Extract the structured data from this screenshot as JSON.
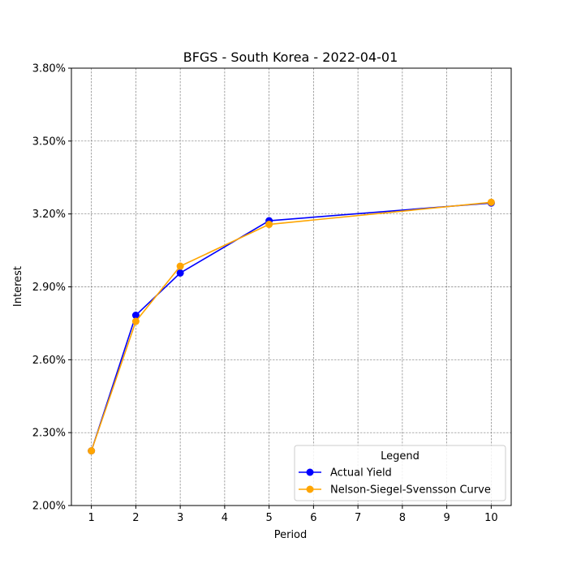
{
  "chart_data": {
    "type": "line",
    "title": "BFGS - South Korea - 2022-04-01",
    "xlabel": "Period",
    "ylabel": "Interest",
    "x": [
      1,
      2,
      3,
      5,
      10
    ],
    "xticks": [
      "1",
      "2",
      "3",
      "4",
      "5",
      "6",
      "7",
      "8",
      "9",
      "10"
    ],
    "xlim": [
      0.55,
      10.45
    ],
    "ylim": [
      2.0,
      3.8
    ],
    "yticks": [
      "2.00%",
      "2.30%",
      "2.60%",
      "2.90%",
      "3.20%",
      "3.50%",
      "3.80%"
    ],
    "grid": true,
    "legend": {
      "title": "Legend",
      "placement": "lower-right"
    },
    "series": [
      {
        "name": "Actual Yield",
        "color": "#0000ff",
        "values": [
          2.225,
          2.783,
          2.957,
          3.172,
          3.245
        ]
      },
      {
        "name": "Nelson-Siegel-Svensson Curve",
        "color": "#ffa500",
        "values": [
          2.225,
          2.758,
          2.985,
          3.157,
          3.248
        ]
      }
    ]
  }
}
